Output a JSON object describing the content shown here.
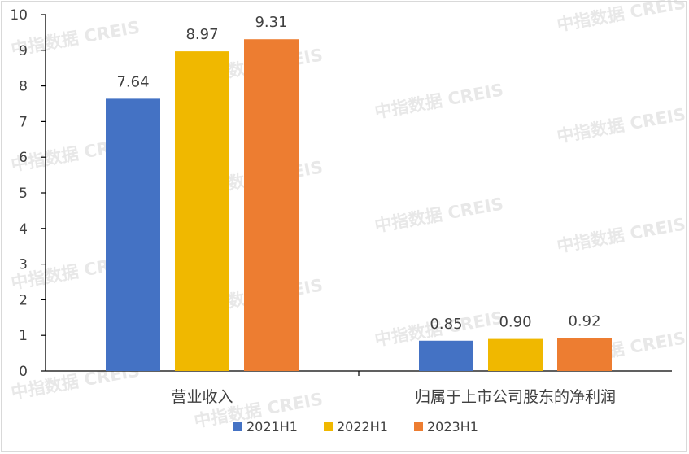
{
  "chart_data": {
    "type": "bar",
    "categories": [
      "营业收入",
      "归属于上市公司股东的净利润"
    ],
    "series": [
      {
        "name": "2021H1",
        "values": [
          7.64,
          0.85
        ],
        "color": "#4472C4"
      },
      {
        "name": "2022H1",
        "values": [
          8.97,
          0.9
        ],
        "color": "#F0B800"
      },
      {
        "name": "2023H1",
        "values": [
          9.31,
          0.92
        ],
        "color": "#ED7D31"
      }
    ],
    "data_labels": [
      [
        "7.64",
        "0.85"
      ],
      [
        "8.97",
        "0.90"
      ],
      [
        "9.31",
        "0.92"
      ]
    ],
    "ylim": [
      0,
      10
    ],
    "yticks": [
      "0",
      "1",
      "2",
      "3",
      "4",
      "5",
      "6",
      "7",
      "8",
      "9",
      "10"
    ],
    "grid": false,
    "legend_position": "bottom",
    "title": "",
    "xlabel": "",
    "ylabel": ""
  },
  "watermark": {
    "text": "中指数据 CREIS",
    "color": "#d6d6d6"
  }
}
